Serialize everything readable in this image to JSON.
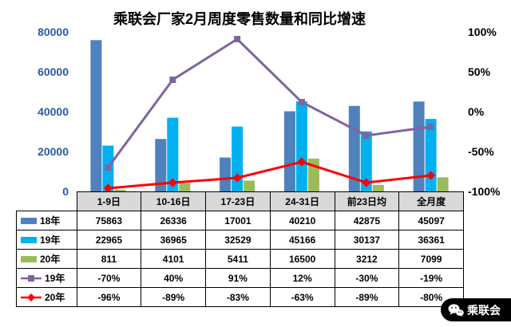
{
  "watermark": {
    "label": "乘联会"
  },
  "chart_data": {
    "type": "bar",
    "subtype": "grouped-bar-with-lines-and-data-table",
    "title": "乘联会厂家2月周度零售数量和同比增速",
    "categories": [
      "1-9日",
      "10-16日",
      "17-23日",
      "24-31日",
      "前23日均",
      "全月度"
    ],
    "bar_series": [
      {
        "name": "18年",
        "color": "#4f81bd",
        "values": [
          75863,
          26336,
          17001,
          40210,
          42875,
          45097
        ]
      },
      {
        "name": "19年",
        "color": "#00b0f0",
        "values": [
          22965,
          36965,
          32529,
          45166,
          30137,
          36361
        ]
      },
      {
        "name": "20年",
        "color": "#9bbb59",
        "values": [
          811,
          4101,
          5411,
          16500,
          3212,
          7099
        ]
      }
    ],
    "line_series": [
      {
        "name": "19年",
        "color": "#8064a2",
        "marker": "square",
        "values_pct": [
          -70,
          40,
          91,
          12,
          -30,
          -19
        ]
      },
      {
        "name": "20年",
        "color": "#ff0000",
        "marker": "diamond",
        "values_pct": [
          -96,
          -89,
          -83,
          -63,
          -89,
          -80
        ]
      }
    ],
    "left_axis": {
      "min": 0,
      "max": 80000,
      "tick_values": [
        0,
        20000,
        40000,
        60000,
        80000
      ],
      "tick_labels": [
        "0",
        "20000",
        "40000",
        "60000",
        "80000"
      ]
    },
    "right_axis": {
      "min": -100,
      "max": 100,
      "tick_values": [
        -100,
        -50,
        0,
        50,
        100
      ],
      "tick_labels": [
        "-100%",
        "-50%",
        "0%",
        "50%",
        "100%"
      ]
    },
    "grid": false,
    "legend_position": "table-left-column"
  },
  "table": {
    "columns": [
      "1-9日",
      "10-16日",
      "17-23日",
      "24-31日",
      "前23日均",
      "全月度"
    ],
    "rows": [
      {
        "name": "18年",
        "legend": "bar",
        "color": "#4f81bd",
        "values": [
          "75863",
          "26336",
          "17001",
          "40210",
          "42875",
          "45097"
        ]
      },
      {
        "name": "19年",
        "legend": "bar",
        "color": "#00b0f0",
        "values": [
          "22965",
          "36965",
          "32529",
          "45166",
          "30137",
          "36361"
        ]
      },
      {
        "name": "20年",
        "legend": "bar",
        "color": "#9bbb59",
        "values": [
          "811",
          "4101",
          "5411",
          "16500",
          "3212",
          "7099"
        ]
      },
      {
        "name": "19年",
        "legend": "line-square",
        "color": "#8064a2",
        "values": [
          "-70%",
          "40%",
          "91%",
          "12%",
          "-30%",
          "-19%"
        ]
      },
      {
        "name": "20年",
        "legend": "line-diamond",
        "color": "#ff0000",
        "values": [
          "-96%",
          "-89%",
          "-83%",
          "-63%",
          "-89%",
          "-80%"
        ]
      }
    ]
  }
}
